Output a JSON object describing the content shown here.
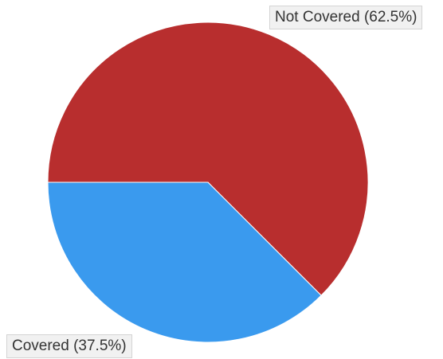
{
  "chart_data": {
    "type": "pie",
    "title": "",
    "start_angle": "9 o'clock, clockwise",
    "slices": [
      {
        "label": "Not Covered",
        "value": 62.5,
        "display": "Not Covered (62.5%)",
        "color": "#b82e2e"
      },
      {
        "label": "Covered",
        "value": 37.5,
        "display": "Covered (37.5%)",
        "color": "#3a9aee"
      }
    ],
    "edge_color": "#ffffff"
  }
}
